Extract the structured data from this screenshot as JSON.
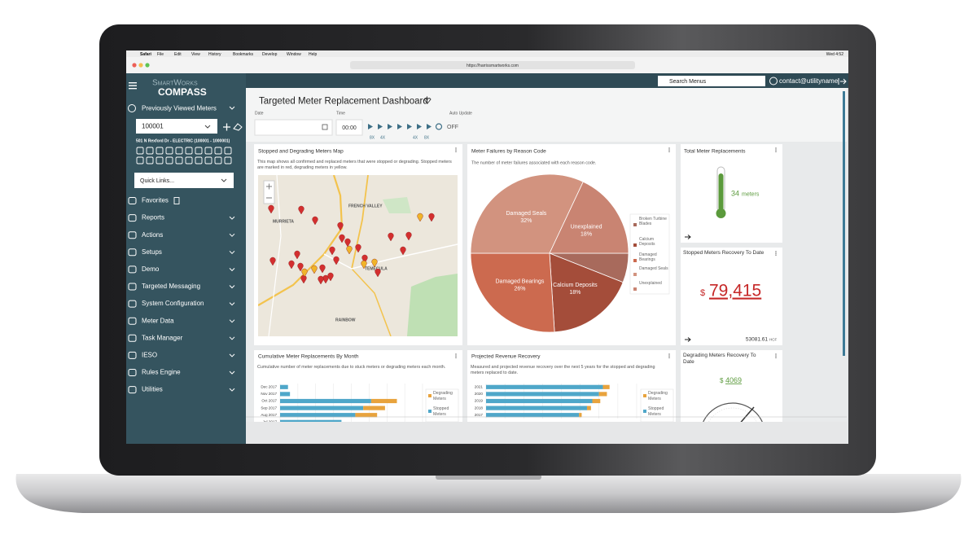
{
  "menubar": {
    "app": "Safari",
    "items": [
      "File",
      "Edit",
      "View",
      "History",
      "Bookmarks",
      "Develop",
      "Window",
      "Help"
    ],
    "clock": "Wed 4:52"
  },
  "browser": {
    "url": "https://harrissmartworks.com"
  },
  "header": {
    "logo_top": "SmartWorks",
    "logo_bottom": "COMPASS",
    "search": "Search Menus",
    "user": "contact@utilityname"
  },
  "sidebar": {
    "recent_title": "Previously Viewed Meters",
    "meter_id": "100001",
    "address": "501 N Rexford Dr - ELECTRIC (100001 - 1000001)",
    "quick_links": "Quick Links...",
    "menu": [
      "Favorites",
      "Reports",
      "Actions",
      "Setups",
      "Demo",
      "Targeted Messaging",
      "System Configuration",
      "Meter Data",
      "Task Manager",
      "IESO",
      "Rules Engine",
      "Utilities"
    ]
  },
  "dashboard": {
    "title": "Targeted Meter Replacement Dashboard",
    "date_label": "Date",
    "time_label": "Time",
    "time_value": "00:00",
    "speeds": [
      "8X",
      "4X",
      "4X",
      "8X"
    ],
    "auto_update_label": "Auto Update",
    "auto_update_value": "OFF"
  },
  "panels": {
    "map": {
      "title": "Stopped and Degrading Meters Map",
      "description": "This map shows all confirmed and replaced meters that were stopped or degrading. Stopped meters are marked in red, degrading meters in yellow.",
      "places": [
        "MURRIETA",
        "FRENCH VALLEY",
        "TEMECULA",
        "RAINBOW"
      ]
    },
    "failures": {
      "title": "Meter Failures by Reason Code",
      "description": "The number of meter failures associated with each reason code.",
      "chart": {
        "type": "pie",
        "categories": [
          "Broken Turbine Blades",
          "Calcium Deposits",
          "Damaged Bearings",
          "Damaged Seals",
          "Unexplained"
        ],
        "values": [
          6,
          18,
          26,
          32,
          18
        ],
        "value_labels": [
          null,
          "18%",
          "26%",
          "32%",
          "18%"
        ],
        "colors": [
          "#a86a5c",
          "#a44d3a",
          "#cc6a4f",
          "#d2937f",
          "#c98472"
        ]
      }
    },
    "total": {
      "title": "Total Meter Replacements",
      "value": 34,
      "unit": "meters"
    },
    "stopped_recovery": {
      "title": "Stopped Meters Recovery To Date",
      "currency": "$",
      "amount": "79,415",
      "volume": 53081.61,
      "volume_unit": "HCF"
    },
    "cumulative": {
      "title": "Cumulative Meter Replacements By Month",
      "description": "Cumulative number of meter replacements due to stuck meters or degrading meters each month.",
      "chart": {
        "type": "bar",
        "categories": [
          "Dec 2017",
          "Nov 2017",
          "Oct 2017",
          "Sep 2017",
          "Aug 2017",
          "Jul 2017"
        ],
        "series": [
          {
            "name": "Degrading Meters",
            "color": "#e8a33d",
            "values": [
              0,
              0,
              26,
              22,
              22,
              0
            ]
          },
          {
            "name": "Stopped Meters",
            "color": "#4fa7c9",
            "values": [
              8,
              10,
              92,
              84,
              76,
              62
            ]
          }
        ]
      }
    },
    "revenue": {
      "title": "Projected Revenue Recovery",
      "description": "Measured and projected revenue recovery over the next 5 years for the stopped and degrading meters replaced to date.",
      "chart": {
        "type": "bar",
        "categories": [
          "2021",
          "2020",
          "2019",
          "2018",
          "2017"
        ],
        "series": [
          {
            "name": "Degrading Meters",
            "color": "#e8a33d",
            "values": [
              10,
              12,
              12,
              6,
              4
            ]
          },
          {
            "name": "Stopped Meters",
            "color": "#4fa7c9",
            "values": [
              176,
              170,
              160,
              152,
              140
            ]
          }
        ]
      }
    },
    "degrading_recovery": {
      "title": "Degrading Meters Recovery To Date",
      "currency": "$",
      "value": 4069
    }
  }
}
